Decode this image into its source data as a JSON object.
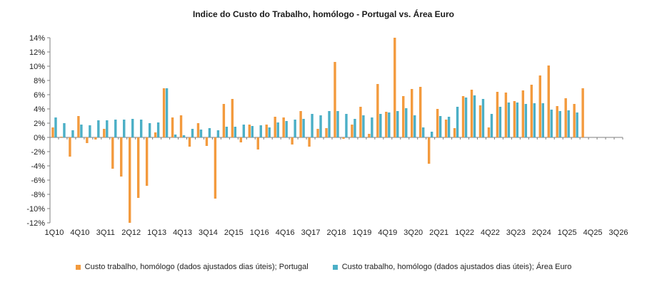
{
  "chart_data": {
    "type": "bar",
    "title": "Indice do Custo do Trabalho, homólogo   -  Portugal vs. Área Euro",
    "ylim": [
      -12,
      14
    ],
    "yticks": [
      "14%",
      "12%",
      "10%",
      "8%",
      "6%",
      "4%",
      "2%",
      "0%",
      "-2%",
      "-4%",
      "-6%",
      "-8%",
      "-10%",
      "-12%"
    ],
    "ytick_values": [
      14,
      12,
      10,
      8,
      6,
      4,
      2,
      0,
      -2,
      -4,
      -6,
      -8,
      -10,
      -12
    ],
    "categories": [
      "1Q10",
      "2Q10",
      "3Q10",
      "4Q10",
      "1Q11",
      "2Q11",
      "3Q11",
      "4Q11",
      "1Q12",
      "2Q12",
      "3Q12",
      "4Q12",
      "1Q13",
      "2Q13",
      "3Q13",
      "4Q13",
      "1Q14",
      "2Q14",
      "3Q14",
      "4Q14",
      "1Q15",
      "2Q15",
      "3Q15",
      "4Q15",
      "1Q16",
      "2Q16",
      "3Q16",
      "4Q16",
      "1Q17",
      "2Q17",
      "3Q17",
      "4Q17",
      "1Q18",
      "2Q18",
      "3Q18",
      "4Q18",
      "1Q19",
      "2Q19",
      "3Q19",
      "4Q19",
      "1Q20",
      "2Q20",
      "3Q20",
      "4Q20",
      "1Q21",
      "2Q21",
      "3Q21",
      "4Q21",
      "1Q22",
      "2Q22",
      "3Q22",
      "4Q22",
      "1Q23",
      "2Q23",
      "3Q23",
      "4Q23",
      "1Q24",
      "2Q24",
      "3Q24",
      "4Q24",
      "1Q25",
      "2Q25",
      "3Q25",
      "4Q25",
      "1Q26",
      "2Q26",
      "3Q26"
    ],
    "xtick_labels": [
      "1Q10",
      "4Q10",
      "3Q11",
      "2Q12",
      "1Q13",
      "4Q13",
      "3Q14",
      "2Q15",
      "1Q16",
      "4Q16",
      "3Q17",
      "2Q18",
      "1Q19",
      "4Q19",
      "3Q20",
      "2Q21",
      "1Q22",
      "4Q22",
      "3Q23",
      "2Q24",
      "1Q25",
      "4Q25",
      "3Q26"
    ],
    "xtick_indices": [
      0,
      3,
      6,
      9,
      12,
      15,
      18,
      21,
      24,
      27,
      30,
      33,
      36,
      39,
      42,
      45,
      48,
      51,
      54,
      57,
      60,
      63,
      66
    ],
    "series": [
      {
        "name": "Custo trabalho, homólogo (dados ajustados dias úteis); Portugal",
        "color": "#F39A3D",
        "values": [
          1.4,
          0.1,
          -2.7,
          3.0,
          -0.8,
          -0.3,
          1.2,
          -4.4,
          -5.5,
          -12.0,
          -8.5,
          -6.8,
          0.7,
          6.9,
          2.8,
          3.1,
          -1.3,
          2.0,
          -1.2,
          -8.6,
          4.7,
          5.4,
          -0.7,
          1.8,
          -1.7,
          1.8,
          2.9,
          2.8,
          -1.0,
          3.7,
          -1.3,
          1.2,
          1.3,
          10.6,
          -0.2,
          1.8,
          4.3,
          0.5,
          7.5,
          3.6,
          14.0,
          5.8,
          6.8,
          7.1,
          -3.7,
          4.0,
          2.5,
          1.3,
          5.8,
          6.7,
          4.5,
          1.4,
          6.4,
          6.3,
          5.1,
          6.6,
          7.4,
          8.7,
          10.1,
          4.4,
          5.5,
          4.7,
          6.9,
          null,
          null,
          null,
          null
        ]
      },
      {
        "name": "Custo trabalho, homólogo (dados ajustados dias úteis); Área Euro",
        "color": "#4BAFC6",
        "values": [
          2.8,
          2.0,
          1.0,
          1.8,
          1.7,
          2.4,
          2.4,
          2.5,
          2.5,
          2.6,
          2.5,
          2.0,
          2.1,
          6.9,
          0.4,
          0.3,
          1.2,
          1.1,
          1.3,
          1.0,
          1.5,
          1.5,
          1.8,
          1.6,
          1.7,
          1.4,
          2.1,
          2.3,
          2.5,
          2.6,
          3.3,
          3.1,
          3.7,
          3.7,
          3.3,
          2.6,
          3.1,
          2.8,
          3.3,
          3.5,
          3.7,
          4.1,
          3.1,
          1.4,
          0.8,
          3.0,
          2.9,
          4.3,
          5.6,
          5.9,
          5.4,
          3.3,
          4.3,
          4.9,
          4.9,
          4.7,
          4.8,
          4.8,
          3.9,
          3.7,
          3.8,
          3.5,
          null,
          null,
          null,
          null,
          null
        ]
      }
    ],
    "legend_position": "bottom",
    "grid": false
  }
}
